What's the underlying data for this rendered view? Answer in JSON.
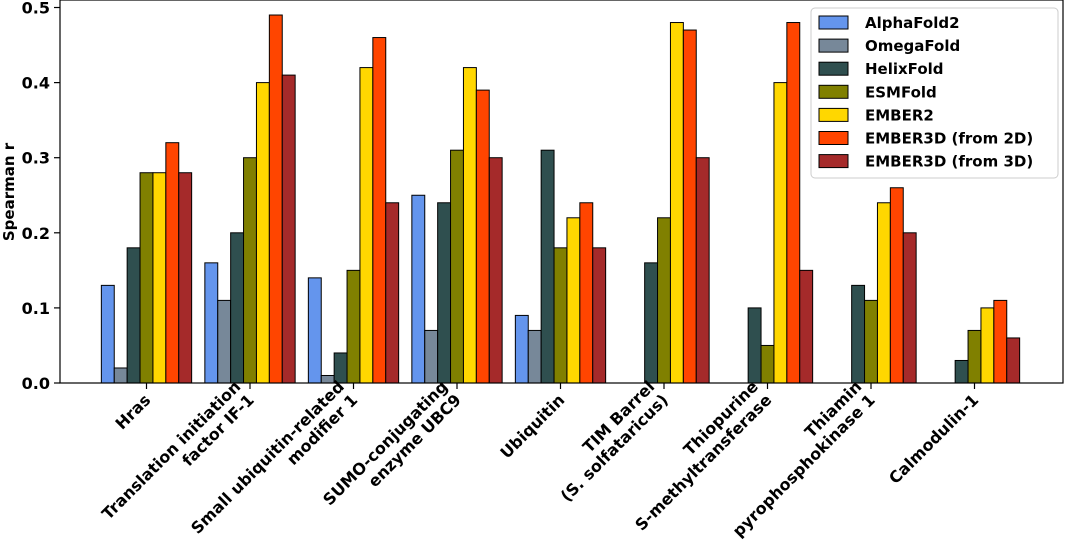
{
  "chart_data": {
    "type": "bar",
    "ylabel": "Spearman r",
    "xlabel": "",
    "ylim": [
      0,
      0.51
    ],
    "yticks": [
      "0.0",
      "0.1",
      "0.2",
      "0.3",
      "0.4",
      "0.5"
    ],
    "categories": [
      [
        "Hras"
      ],
      [
        "Translation initiation",
        "factor IF-1"
      ],
      [
        "Small ubiquitin-related",
        "modifier 1"
      ],
      [
        "SUMO-conjugating",
        "enzyme UBC9"
      ],
      [
        "Ubiquitin"
      ],
      [
        "TIM Barrel",
        "(S. solfataricus)"
      ],
      [
        "Thiopurine",
        "S-methyltransferase"
      ],
      [
        "Thiamin",
        "pyrophosphokinase 1"
      ],
      [
        "Calmodulin-1"
      ]
    ],
    "legend_position": "top-right",
    "series": [
      {
        "name": "AlphaFold2",
        "color": "#6495ed",
        "values": [
          0.13,
          0.16,
          0.14,
          0.25,
          0.09,
          0.0,
          0.0,
          0.0,
          0.0
        ]
      },
      {
        "name": "OmegaFold",
        "color": "#778899",
        "values": [
          0.02,
          0.11,
          0.01,
          0.07,
          0.07,
          0.0,
          0.0,
          0.0,
          0.0
        ]
      },
      {
        "name": "HelixFold",
        "color": "#2f4f4f",
        "values": [
          0.18,
          0.2,
          0.04,
          0.24,
          0.31,
          0.16,
          0.1,
          0.13,
          0.03
        ]
      },
      {
        "name": "ESMFold",
        "color": "#808000",
        "values": [
          0.28,
          0.3,
          0.15,
          0.31,
          0.18,
          0.22,
          0.05,
          0.11,
          0.07
        ]
      },
      {
        "name": "EMBER2",
        "color": "#ffd700",
        "values": [
          0.28,
          0.4,
          0.42,
          0.42,
          0.22,
          0.48,
          0.4,
          0.24,
          0.1
        ]
      },
      {
        "name": "EMBER3D (from 2D)",
        "color": "#ff4500",
        "values": [
          0.32,
          0.49,
          0.46,
          0.39,
          0.24,
          0.47,
          0.48,
          0.26,
          0.11
        ]
      },
      {
        "name": "EMBER3D (from 3D)",
        "color": "#a52a2a",
        "values": [
          0.28,
          0.41,
          0.24,
          0.3,
          0.18,
          0.3,
          0.15,
          0.2,
          0.06
        ]
      }
    ]
  }
}
